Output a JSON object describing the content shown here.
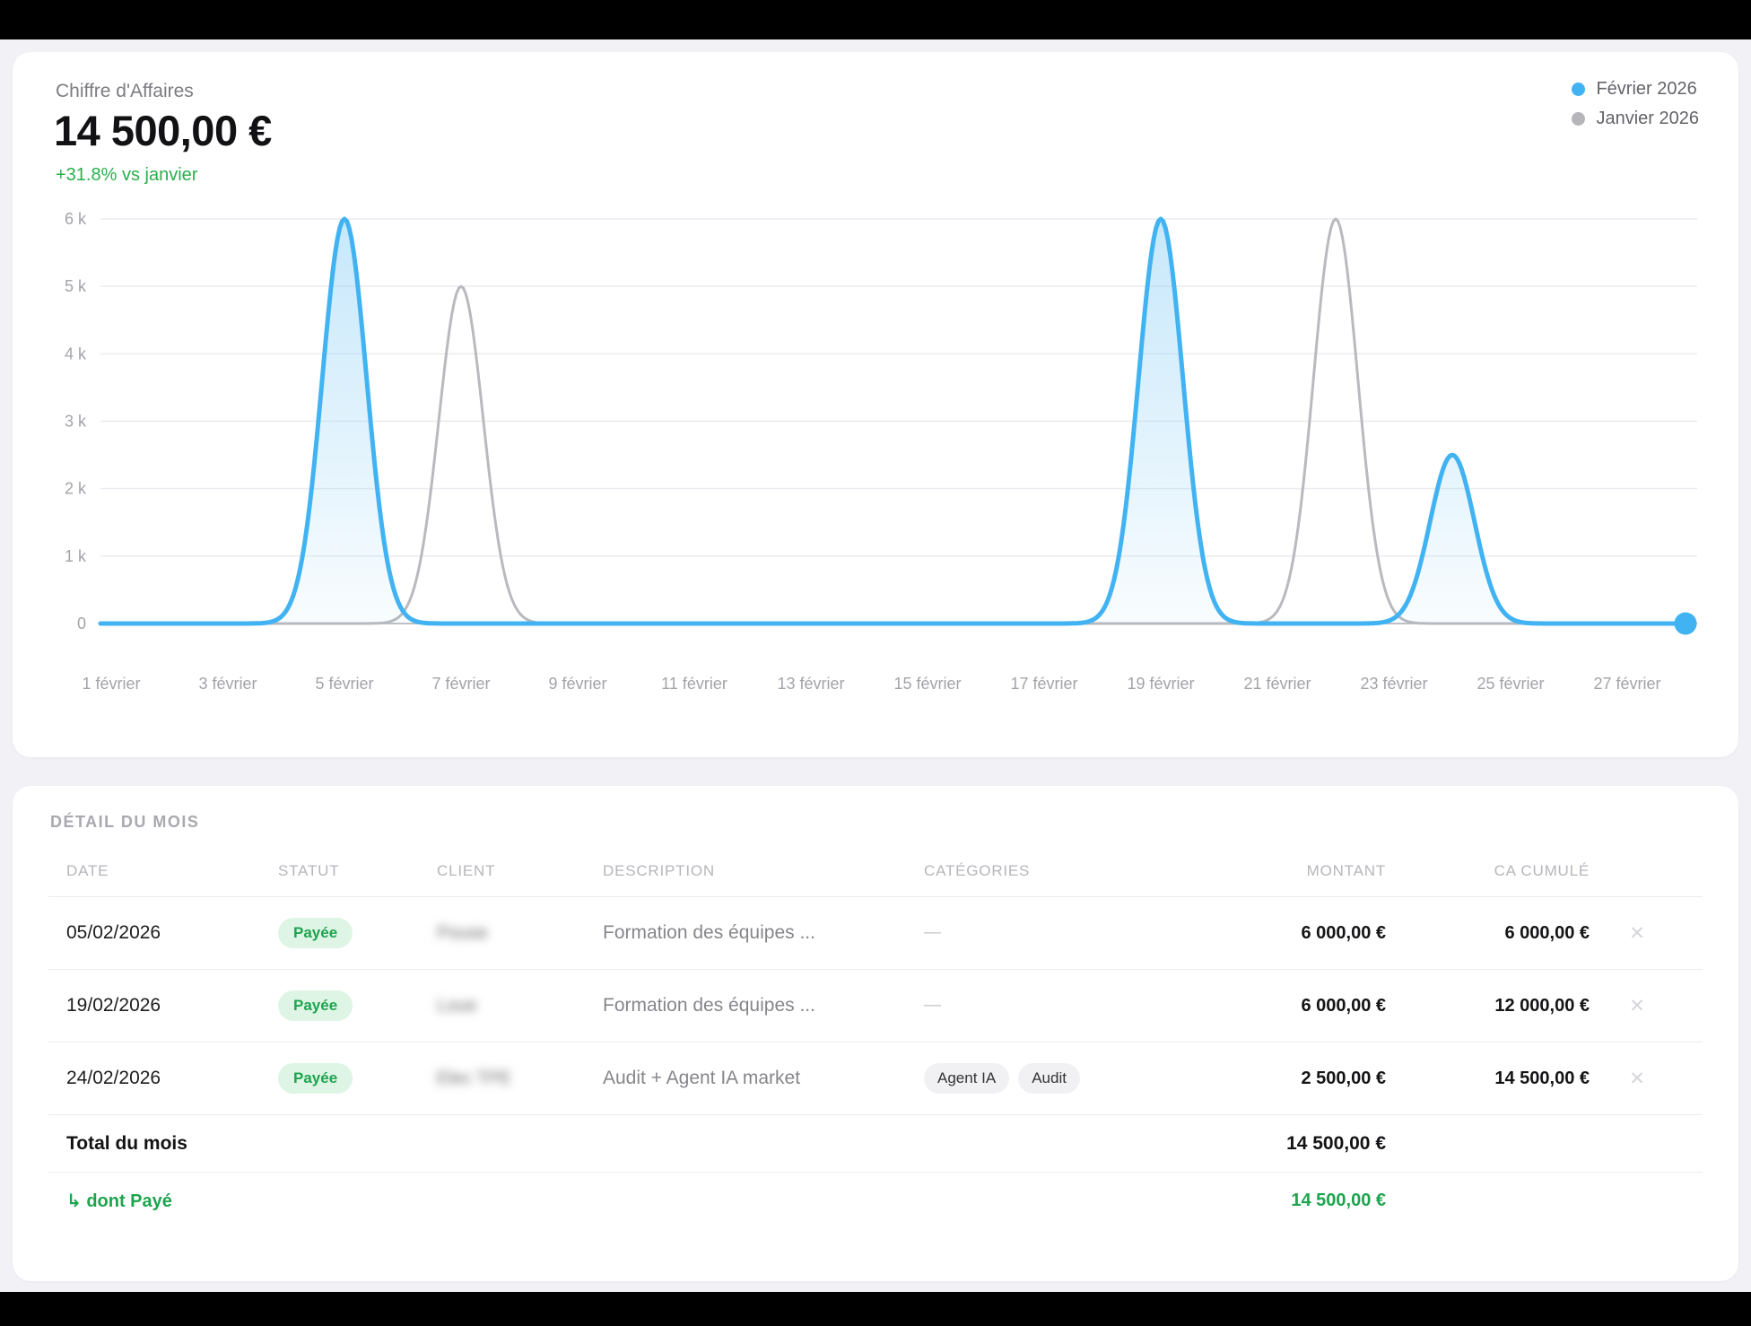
{
  "page": {
    "frame_color": "#000000",
    "background": "#f1f1f6",
    "accent_blue": "#41b3f2",
    "accent_gray": "#b5b5ba",
    "accent_green": "#28b04c"
  },
  "revenue_card": {
    "title": "Chiffre d'Affaires",
    "amount": "14 500,00 €",
    "delta": "+31.8% vs janvier",
    "delta_color": "#28b04c",
    "legend": [
      {
        "label": "Février 2026",
        "color": "#41b3f2"
      },
      {
        "label": "Janvier 2026",
        "color": "#b5b5ba"
      }
    ]
  },
  "chart_data": {
    "type": "area",
    "title": "Chiffre d'Affaires",
    "unit": "EUR",
    "x_domain": [
      1,
      28
    ],
    "x_tick_labels": [
      "1 février",
      "3 février",
      "5 février",
      "7 février",
      "9 février",
      "11 février",
      "13 février",
      "15 février",
      "17 février",
      "19 février",
      "21 février",
      "23 février",
      "25 février",
      "27 février"
    ],
    "y_ticks": [
      "0",
      "1 k",
      "2 k",
      "3 k",
      "4 k",
      "5 k",
      "6 k"
    ],
    "y_max": 6000,
    "grid": true,
    "legend_position": "top-right",
    "series": [
      {
        "name": "Janvier 2026",
        "color": "#b9b9be",
        "filled": false,
        "end_dot": false,
        "points": [
          {
            "day": 7,
            "value": 5000
          },
          {
            "day": 22,
            "value": 6000
          }
        ]
      },
      {
        "name": "Février 2026",
        "color": "#41b3f2",
        "filled": true,
        "end_dot": true,
        "points": [
          {
            "day": 5,
            "value": 6000
          },
          {
            "day": 19,
            "value": 6000
          },
          {
            "day": 24,
            "value": 2500
          }
        ]
      }
    ]
  },
  "detail_card": {
    "title": "DÉTAIL DU MOIS",
    "columns": [
      "DATE",
      "STATUT",
      "CLIENT",
      "DESCRIPTION",
      "CATÉGORIES",
      "MONTANT",
      "CA CUMULÉ"
    ],
    "empty_category": "—",
    "close_glyph": "✕",
    "rows": [
      {
        "date": "05/02/2026",
        "status": "Payée",
        "client": "Pouse",
        "description": "Formation des équipes ...",
        "categories": [],
        "amount": "6 000,00 €",
        "cumulative": "6 000,00 €"
      },
      {
        "date": "19/02/2026",
        "status": "Payée",
        "client": "Loue",
        "description": "Formation des équipes ...",
        "categories": [],
        "amount": "6 000,00 €",
        "cumulative": "12 000,00 €"
      },
      {
        "date": "24/02/2026",
        "status": "Payée",
        "client": "Elec TPE",
        "description": "Audit + Agent IA market",
        "categories": [
          "Agent IA",
          "Audit"
        ],
        "amount": "2 500,00 €",
        "cumulative": "14 500,00 €"
      }
    ],
    "footer": {
      "total_label": "Total du mois",
      "total_amount": "14 500,00 €",
      "paid_label": "↳ dont Payé",
      "paid_amount": "14 500,00 €",
      "paid_color": "#1ea44e"
    }
  }
}
